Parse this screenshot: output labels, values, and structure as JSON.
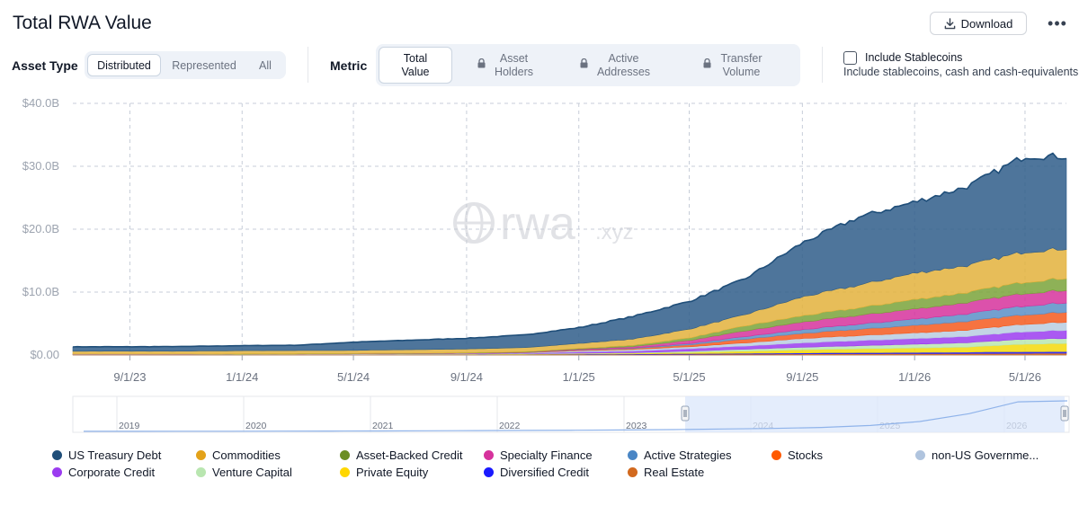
{
  "header": {
    "title": "Total RWA Value",
    "download_label": "Download",
    "more_label": "•••"
  },
  "asset_type": {
    "label": "Asset Type",
    "options": [
      "Distributed",
      "Represented",
      "All"
    ],
    "selected": "Distributed"
  },
  "metric": {
    "label": "Metric",
    "options": [
      {
        "line1": "Total",
        "line2": "Value",
        "locked": false
      },
      {
        "line1": "Asset",
        "line2": "Holders",
        "locked": true
      },
      {
        "line1": "Active",
        "line2": "Addresses",
        "locked": true
      },
      {
        "line1": "Transfer",
        "line2": "Volume",
        "locked": true
      }
    ],
    "selected": "Total Value"
  },
  "stablecoins": {
    "label": "Include Stablecoins",
    "description": "Include stablecoins, cash and cash-equivalents",
    "checked": false
  },
  "watermark": {
    "main": "rwa",
    "suffix": ".xyz"
  },
  "colors": {
    "gridline": "#c7cdd8",
    "axis_text": "#6b7280"
  },
  "chart_data": {
    "type": "area",
    "stacked": true,
    "title": "Total RWA Value",
    "y_ticks": [
      "$0.00",
      "$10.0B",
      "$20.0B",
      "$30.0B",
      "$40.0B"
    ],
    "ylim": [
      0,
      40
    ],
    "y_unit": "$B",
    "x_ticks": [
      "9/1/23",
      "1/1/24",
      "5/1/24",
      "9/1/24",
      "1/1/25",
      "5/1/25",
      "9/1/25",
      "1/1/26",
      "5/1/26"
    ],
    "x": [
      "7/1/23",
      "9/1/23",
      "11/1/23",
      "1/1/24",
      "3/1/24",
      "5/1/24",
      "7/1/24",
      "9/1/24",
      "11/1/24",
      "1/1/25",
      "3/1/25",
      "5/1/25",
      "7/1/25",
      "9/1/25",
      "11/1/25",
      "1/1/26",
      "3/1/26",
      "5/1/26",
      "6/15/26"
    ],
    "grid": true,
    "legend_position": "bottom",
    "series": [
      {
        "name": "Real Estate",
        "color": "#d2691e",
        "values": [
          0.05,
          0.05,
          0.05,
          0.05,
          0.05,
          0.06,
          0.06,
          0.06,
          0.07,
          0.08,
          0.1,
          0.12,
          0.15,
          0.18,
          0.2,
          0.22,
          0.25,
          0.28,
          0.3
        ]
      },
      {
        "name": "Diversified Credit",
        "color": "#1a1aff",
        "values": [
          0,
          0,
          0,
          0,
          0,
          0,
          0,
          0,
          0.02,
          0.05,
          0.08,
          0.1,
          0.12,
          0.15,
          0.18,
          0.2,
          0.22,
          0.25,
          0.25
        ]
      },
      {
        "name": "Private Equity",
        "color": "#f5d90a",
        "values": [
          0.02,
          0.02,
          0.02,
          0.03,
          0.03,
          0.03,
          0.04,
          0.05,
          0.06,
          0.08,
          0.1,
          0.2,
          0.35,
          0.5,
          0.6,
          0.7,
          0.8,
          1.2,
          1.3
        ]
      },
      {
        "name": "Venture Capital",
        "color": "#b9e6b0",
        "values": [
          0.02,
          0.02,
          0.02,
          0.03,
          0.03,
          0.03,
          0.04,
          0.05,
          0.06,
          0.08,
          0.1,
          0.2,
          0.3,
          0.4,
          0.5,
          0.6,
          0.7,
          0.8,
          0.8
        ]
      },
      {
        "name": "Corporate Credit",
        "color": "#9b3cf0",
        "values": [
          0.02,
          0.02,
          0.02,
          0.02,
          0.02,
          0.03,
          0.04,
          0.05,
          0.06,
          0.2,
          0.25,
          0.4,
          0.5,
          0.7,
          0.8,
          0.9,
          1.0,
          1.2,
          1.3
        ]
      },
      {
        "name": "non-US Government Debt",
        "color": "#b9cde0",
        "values": [
          0.02,
          0.02,
          0.02,
          0.02,
          0.03,
          0.03,
          0.04,
          0.05,
          0.07,
          0.2,
          0.25,
          0.3,
          0.5,
          0.7,
          0.8,
          0.9,
          1.0,
          1.2,
          1.3
        ]
      },
      {
        "name": "Stocks",
        "color": "#f45a1e",
        "values": [
          0,
          0,
          0,
          0,
          0,
          0,
          0,
          0,
          0.02,
          0.1,
          0.15,
          0.3,
          0.6,
          0.8,
          1.0,
          1.2,
          1.4,
          1.5,
          1.6
        ]
      },
      {
        "name": "Active Strategies",
        "color": "#5b8fc7",
        "values": [
          0,
          0,
          0,
          0,
          0,
          0,
          0,
          0,
          0.02,
          0.05,
          0.1,
          0.2,
          0.4,
          0.6,
          0.8,
          1.0,
          1.2,
          1.4,
          1.5
        ]
      },
      {
        "name": "Specialty Finance",
        "color": "#d6329c",
        "values": [
          0.01,
          0.01,
          0.01,
          0.01,
          0.02,
          0.02,
          0.03,
          0.04,
          0.05,
          0.1,
          0.2,
          0.5,
          0.9,
          1.2,
          1.4,
          1.6,
          1.8,
          2.0,
          2.0
        ]
      },
      {
        "name": "Asset-Backed Credit",
        "color": "#7aa33a",
        "values": [
          0.02,
          0.02,
          0.02,
          0.03,
          0.03,
          0.04,
          0.05,
          0.06,
          0.08,
          0.1,
          0.2,
          0.4,
          0.8,
          1.0,
          1.2,
          1.5,
          1.6,
          1.8,
          1.9
        ]
      },
      {
        "name": "Commodities",
        "color": "#e3b23c",
        "values": [
          0.45,
          0.45,
          0.45,
          0.5,
          0.5,
          0.5,
          0.55,
          0.6,
          0.65,
          0.8,
          1.0,
          1.4,
          1.8,
          3.0,
          3.6,
          4.2,
          4.3,
          4.8,
          4.7
        ]
      },
      {
        "name": "US Treasury Debt",
        "color": "#2f5d8a",
        "values": [
          0.7,
          0.7,
          0.75,
          0.8,
          0.85,
          1.3,
          1.5,
          1.7,
          2.0,
          2.5,
          3.6,
          4.4,
          5.7,
          8.6,
          10.8,
          11.3,
          12.6,
          15.2,
          14.6
        ]
      }
    ]
  },
  "navigator": {
    "years": [
      "2019",
      "2020",
      "2021",
      "2022",
      "2023",
      "2024",
      "2025",
      "2026"
    ],
    "values": [
      0.1,
      0.1,
      0.15,
      0.2,
      0.3,
      0.4,
      0.5,
      0.6,
      0.8,
      1.0,
      1.2,
      1.5,
      1.8,
      2.5,
      3.0,
      4.0,
      6.0,
      10.0,
      18.0,
      30.0,
      31.0
    ]
  },
  "legend": [
    {
      "name": "US Treasury Debt",
      "color": "#1f4e79"
    },
    {
      "name": "Commodities",
      "color": "#e3a21a"
    },
    {
      "name": "Asset-Backed Credit",
      "color": "#6b8e23"
    },
    {
      "name": "Specialty Finance",
      "color": "#d6329c"
    },
    {
      "name": "Active Strategies",
      "color": "#4a86c5"
    },
    {
      "name": "Stocks",
      "color": "#ff5a00"
    },
    {
      "name": "non-US Governme...",
      "color": "#b0c4de"
    },
    {
      "name": "Corporate Credit",
      "color": "#9b3cf0"
    },
    {
      "name": "Venture Capital",
      "color": "#b9e6b0"
    },
    {
      "name": "Private Equity",
      "color": "#ffd700"
    },
    {
      "name": "Diversified Credit",
      "color": "#1a1aff"
    },
    {
      "name": "Real Estate",
      "color": "#d2691e"
    }
  ]
}
